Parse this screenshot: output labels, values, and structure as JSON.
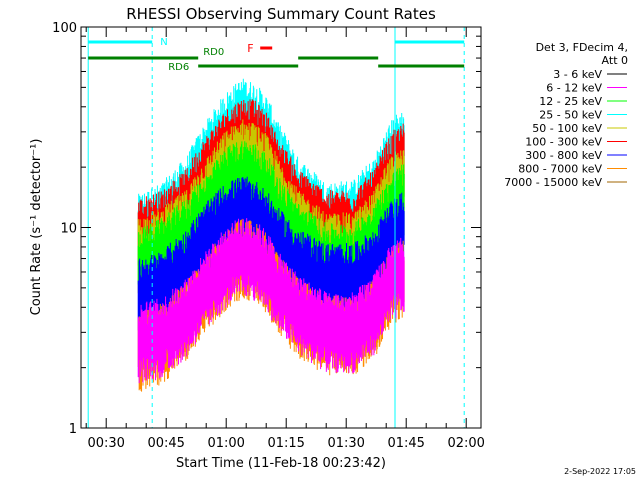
{
  "chart_data": {
    "type": "line",
    "title": "RHESSI Observing Summary Count Rates",
    "xlabel": "Start Time (11-Feb-18 00:23:42)",
    "ylabel": "Count Rate (s⁻¹ detector⁻¹)",
    "yscale": "log",
    "ylim": [
      1,
      100
    ],
    "y_ticks": [
      {
        "value": 1,
        "label": "1"
      },
      {
        "value": 10,
        "label": "10"
      },
      {
        "value": 100,
        "label": "100"
      }
    ],
    "x_ticks": [
      {
        "value": 30,
        "label": "00:30"
      },
      {
        "value": 45,
        "label": "00:45"
      },
      {
        "value": 60,
        "label": "01:00"
      },
      {
        "value": 75,
        "label": "01:15"
      },
      {
        "value": 90,
        "label": "01:30"
      },
      {
        "value": 105,
        "label": "01:45"
      },
      {
        "value": 120,
        "label": "02:00"
      }
    ],
    "x_range_minutes": [
      23.7,
      123.7
    ],
    "legend": {
      "placement": "right",
      "header": [
        "Det 3, FDecim 4,",
        "Att 0"
      ],
      "entries": [
        {
          "label": "3 - 6 keV",
          "color": "#000000"
        },
        {
          "label": "6 - 12 keV",
          "color": "#ff00ff"
        },
        {
          "label": "12 - 25 keV",
          "color": "#00ff00"
        },
        {
          "label": "25 - 50 keV",
          "color": "#00ffff"
        },
        {
          "label": "50 - 100 keV",
          "color": "#c8c800"
        },
        {
          "label": "100 - 300 keV",
          "color": "#ff0000"
        },
        {
          "label": "300 - 800 keV",
          "color": "#0000ff"
        },
        {
          "label": "800 - 7000 keV",
          "color": "#ff8c00"
        },
        {
          "label": "7000 - 15000 keV",
          "color": "#a06400"
        }
      ]
    },
    "series": [
      {
        "name": "25 - 50 keV",
        "color": "#00ffff",
        "x": [
          38,
          44,
          50,
          56,
          60,
          64,
          67,
          70,
          73,
          78,
          85,
          92,
          97,
          100,
          102,
          104.5
        ],
        "y": [
          10.5,
          12,
          16,
          26,
          34,
          40,
          38,
          33,
          24,
          16,
          12,
          12.5,
          16,
          22,
          26,
          28
        ]
      },
      {
        "name": "100 - 300 keV",
        "color": "#ff0000",
        "x": [
          38,
          44,
          50,
          56,
          60,
          64,
          67,
          70,
          73,
          78,
          85,
          92,
          97,
          100,
          102,
          104.5
        ],
        "y": [
          10,
          11,
          14,
          22,
          28,
          32,
          31,
          27,
          20,
          14,
          11,
          11,
          14,
          19,
          22,
          24
        ]
      },
      {
        "name": "50 - 100 keV",
        "color": "#c8c800",
        "x": [
          38,
          44,
          50,
          56,
          60,
          64,
          67,
          70,
          73,
          78,
          85,
          92,
          97,
          100,
          102,
          104.5
        ],
        "y": [
          8,
          9,
          11,
          17,
          22,
          25,
          24,
          21,
          16,
          11,
          8.5,
          8.5,
          11,
          15,
          17,
          18
        ]
      },
      {
        "name": "12 - 25 keV",
        "color": "#00ff00",
        "x": [
          38,
          44,
          50,
          56,
          60,
          64,
          67,
          70,
          73,
          78,
          85,
          92,
          97,
          100,
          102,
          104.5
        ],
        "y": [
          7,
          8,
          10,
          14,
          18,
          20,
          19,
          17,
          13,
          9.5,
          7.5,
          7.5,
          9.5,
          12,
          14,
          15
        ]
      },
      {
        "name": "300 - 800 keV",
        "color": "#0000ff",
        "x": [
          38,
          44,
          50,
          56,
          60,
          64,
          67,
          70,
          73,
          78,
          85,
          92,
          97,
          100,
          102,
          104.5
        ],
        "y": [
          5,
          5.5,
          7,
          10,
          12,
          13,
          12.5,
          11,
          9,
          7,
          6,
          6,
          7,
          9,
          10,
          11
        ]
      },
      {
        "name": "800 - 7000 keV",
        "color": "#ff8c00",
        "x": [
          38,
          44,
          50,
          56,
          60,
          64,
          67,
          70,
          73,
          78,
          85,
          92,
          97,
          100,
          102,
          104.5
        ],
        "y": [
          2.7,
          3,
          3.8,
          5.5,
          7,
          8,
          7.7,
          6.8,
          5.2,
          4,
          3.3,
          3.3,
          4,
          5.2,
          6,
          6.5
        ]
      },
      {
        "name": "6 - 12 keV",
        "color": "#ff00ff",
        "x": [
          38,
          44,
          50,
          56,
          60,
          64,
          67,
          70,
          73,
          78,
          85,
          92,
          97,
          100,
          102,
          104.5
        ],
        "y": [
          3,
          3.2,
          4,
          5.8,
          7.2,
          8.2,
          7.8,
          7,
          5.4,
          4.2,
          3.4,
          3.4,
          4.2,
          5.4,
          6.2,
          6.7
        ]
      }
    ],
    "annotations": {
      "saa_lines_solid": [
        25.5,
        102.2
      ],
      "saa_lines_dashed": [
        41.5,
        119.5
      ],
      "night_bars": [
        {
          "label": "N",
          "start": 25.5,
          "end": 41.5
        },
        {
          "label": "",
          "start": 102.2,
          "end": 119.5
        }
      ],
      "flare_bars": [
        {
          "label": "F",
          "start": 68.5,
          "end": 71.5
        }
      ],
      "data_bars": [
        {
          "label": "RD0",
          "start": 25.5,
          "end": 53,
          "level": "upper"
        },
        {
          "label": "RD6",
          "start": 53,
          "end": 78,
          "level": "lower"
        },
        {
          "label": "",
          "start": 78,
          "end": 98,
          "level": "upper"
        },
        {
          "label": "",
          "start": 98,
          "end": 119.5,
          "level": "lower"
        }
      ]
    },
    "footer_date": "2-Sep-2022 17:05"
  }
}
